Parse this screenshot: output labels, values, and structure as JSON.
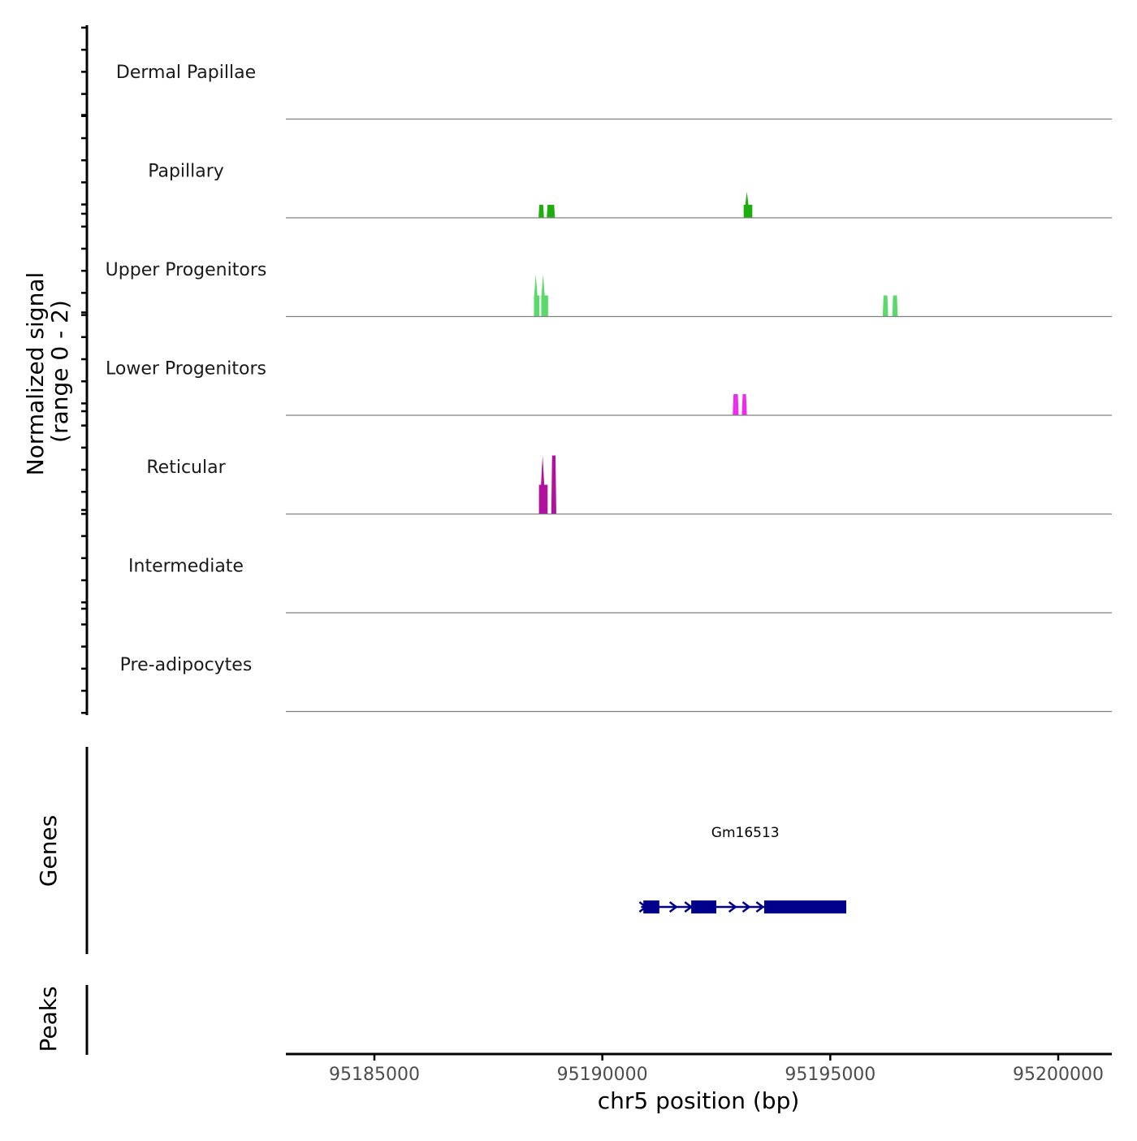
{
  "chart_data": {
    "type": "area",
    "title": "",
    "region": {
      "chromosome": "chr5",
      "start": 95183200,
      "end": 95201300
    },
    "xlabel": "chr5 position (bp)",
    "x_ticks": [
      95185000,
      95190000,
      95195000,
      95200000
    ],
    "x_tick_labels": [
      "95185000",
      "95190000",
      "95195000",
      "95200000"
    ],
    "coverage": {
      "ylabel_line1": "Normalized signal",
      "ylabel_line2": "(range 0 - 2)",
      "ylim": [
        0,
        2
      ],
      "tracks": [
        {
          "name": "Dermal Papillae",
          "color": "#8B8B00",
          "peaks": []
        },
        {
          "name": "Papillary",
          "color": "#1FAE12",
          "peaks": [
            {
              "x0": 95188600,
              "x1": 95188720,
              "y": 0.8
            },
            {
              "x0": 95188780,
              "x1": 95188960,
              "y": 0.8
            },
            {
              "x0": 95193100,
              "x1": 95193290,
              "y": 0.8,
              "spike_x": 95193170,
              "spike_y": 1.6
            }
          ]
        },
        {
          "name": "Upper Progenitors",
          "color": "#5BD96A",
          "peaks": [
            {
              "x0": 95188500,
              "x1": 95188620,
              "y": 1.3,
              "spike_x": 95188540,
              "spike_y": 2.6
            },
            {
              "x0": 95188660,
              "x1": 95188810,
              "y": 1.3,
              "spike_x": 95188700,
              "spike_y": 2.6
            },
            {
              "x0": 95196150,
              "x1": 95196270,
              "y": 1.3
            },
            {
              "x0": 95196360,
              "x1": 95196480,
              "y": 1.3
            }
          ]
        },
        {
          "name": "Lower Progenitors",
          "color": "#EE2BEE",
          "peaks": [
            {
              "x0": 95192860,
              "x1": 95192990,
              "y": 1.3
            },
            {
              "x0": 95193060,
              "x1": 95193170,
              "y": 1.3
            }
          ]
        },
        {
          "name": "Reticular",
          "color": "#B0119D",
          "peaks": [
            {
              "x0": 95188610,
              "x1": 95188800,
              "y": 1.8,
              "spike_x": 95188690,
              "spike_y": 3.6
            },
            {
              "x0": 95188880,
              "x1": 95188990,
              "y": 3.6
            }
          ]
        },
        {
          "name": "Intermediate",
          "color": "#8B1A1A",
          "peaks": []
        },
        {
          "name": "Pre-adipocytes",
          "color": "#104E8B",
          "peaks": []
        }
      ]
    },
    "genes": {
      "ylabel": "Genes",
      "color": "#00008B",
      "items": [
        {
          "name": "Gm16513",
          "start": 95190850,
          "end": 95195350,
          "strand": "+",
          "exons": [
            [
              95190900,
              95191250
            ],
            [
              95191950,
              95192500
            ],
            [
              95193550,
              95195350
            ]
          ]
        }
      ]
    },
    "peaks": {
      "ylabel": "Peaks",
      "items": []
    }
  }
}
